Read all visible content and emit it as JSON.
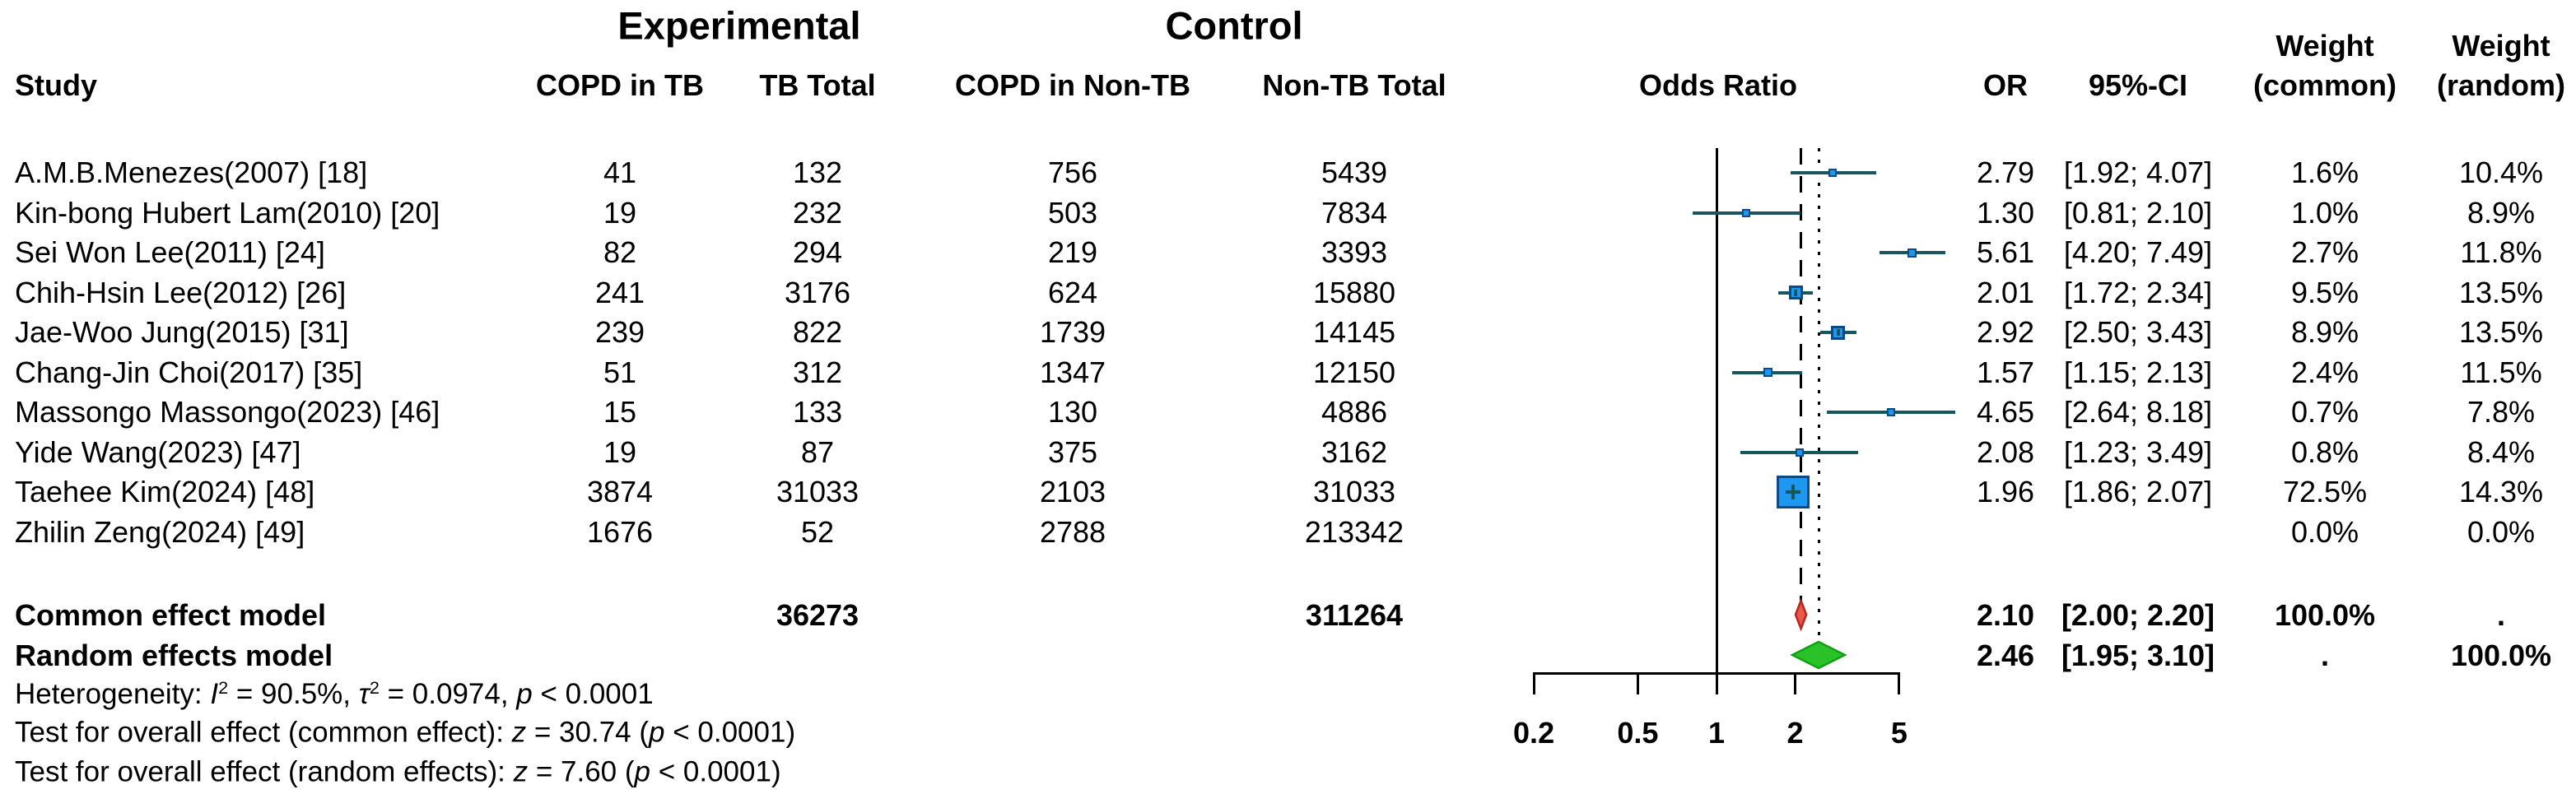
{
  "headers": {
    "group_experimental": "Experimental",
    "group_control": "Control",
    "study": "Study",
    "copd_in_tb": "COPD in TB",
    "tb_total": "TB Total",
    "copd_in_non_tb": "COPD in Non-TB",
    "non_tb_total": "Non-TB Total",
    "odds_ratio": "Odds Ratio",
    "or": "OR",
    "ci": "95%-CI",
    "weight_common_line1": "Weight",
    "weight_common_line2": "(common)",
    "weight_random_line1": "Weight",
    "weight_random_line2": "(random)"
  },
  "colors": {
    "square_fill": "#1E97F0",
    "square_border": "#0B4A85",
    "ci_line": "#17565E",
    "cross": "#17565E",
    "common_diamond_fill": "#E9584A",
    "common_diamond_border": "#B3271E",
    "random_diamond_fill": "#29C229",
    "random_diamond_border": "#12A012",
    "reference_lines": "#000000"
  },
  "chart_data": {
    "type": "forest",
    "title": "",
    "x_axis": {
      "scale": "log",
      "reference_line": 1,
      "ticks": [
        {
          "v": 0.2,
          "label": "0.2"
        },
        {
          "v": 0.5,
          "label": "0.5"
        },
        {
          "v": 1,
          "label": "1"
        },
        {
          "v": 2,
          "label": "2"
        },
        {
          "v": 5,
          "label": "5"
        }
      ]
    },
    "studies": [
      {
        "study": "A.M.B.Menezes(2007) [18]",
        "copd_in_tb": "41",
        "tb_total": "132",
        "copd_in_non_tb": "756",
        "non_tb_total": "5439",
        "or": 2.79,
        "ci_low": 1.92,
        "ci_high": 4.07,
        "or_text": "2.79",
        "ci_text": "[1.92; 4.07]",
        "weight_common": "1.6%",
        "weight_random": "10.4%"
      },
      {
        "study": "Kin-bong Hubert Lam(2010) [20]",
        "copd_in_tb": "19",
        "tb_total": "232",
        "copd_in_non_tb": "503",
        "non_tb_total": "7834",
        "or": 1.3,
        "ci_low": 0.81,
        "ci_high": 2.1,
        "or_text": "1.30",
        "ci_text": "[0.81; 2.10]",
        "weight_common": "1.0%",
        "weight_random": "8.9%"
      },
      {
        "study": "Sei Won Lee(2011) [24]",
        "copd_in_tb": "82",
        "tb_total": "294",
        "copd_in_non_tb": "219",
        "non_tb_total": "3393",
        "or": 5.61,
        "ci_low": 4.2,
        "ci_high": 7.49,
        "or_text": "5.61",
        "ci_text": "[4.20; 7.49]",
        "weight_common": "2.7%",
        "weight_random": "11.8%"
      },
      {
        "study": "Chih-Hsin Lee(2012) [26]",
        "copd_in_tb": "241",
        "tb_total": "3176",
        "copd_in_non_tb": "624",
        "non_tb_total": "15880",
        "or": 2.01,
        "ci_low": 1.72,
        "ci_high": 2.34,
        "or_text": "2.01",
        "ci_text": "[1.72; 2.34]",
        "weight_common": "9.5%",
        "weight_random": "13.5%"
      },
      {
        "study": "Jae-Woo Jung(2015) [31]",
        "copd_in_tb": "239",
        "tb_total": "822",
        "copd_in_non_tb": "1739",
        "non_tb_total": "14145",
        "or": 2.92,
        "ci_low": 2.5,
        "ci_high": 3.43,
        "or_text": "2.92",
        "ci_text": "[2.50; 3.43]",
        "weight_common": "8.9%",
        "weight_random": "13.5%"
      },
      {
        "study": "Chang-Jin Choi(2017) [35]",
        "copd_in_tb": "51",
        "tb_total": "312",
        "copd_in_non_tb": "1347",
        "non_tb_total": "12150",
        "or": 1.57,
        "ci_low": 1.15,
        "ci_high": 2.13,
        "or_text": "1.57",
        "ci_text": "[1.15; 2.13]",
        "weight_common": "2.4%",
        "weight_random": "11.5%"
      },
      {
        "study": "Massongo Massongo(2023) [46]",
        "copd_in_tb": "15",
        "tb_total": "133",
        "copd_in_non_tb": "130",
        "non_tb_total": "4886",
        "or": 4.65,
        "ci_low": 2.64,
        "ci_high": 8.18,
        "or_text": "4.65",
        "ci_text": "[2.64; 8.18]",
        "weight_common": "0.7%",
        "weight_random": "7.8%"
      },
      {
        "study": "Yide Wang(2023) [47]",
        "copd_in_tb": "19",
        "tb_total": "87",
        "copd_in_non_tb": "375",
        "non_tb_total": "3162",
        "or": 2.08,
        "ci_low": 1.23,
        "ci_high": 3.49,
        "or_text": "2.08",
        "ci_text": "[1.23; 3.49]",
        "weight_common": "0.8%",
        "weight_random": "8.4%"
      },
      {
        "study": "Taehee Kim(2024) [48]",
        "copd_in_tb": "3874",
        "tb_total": "31033",
        "copd_in_non_tb": "2103",
        "non_tb_total": "31033",
        "or": 1.96,
        "ci_low": 1.86,
        "ci_high": 2.07,
        "or_text": "1.96",
        "ci_text": "[1.86; 2.07]",
        "weight_common": "72.5%",
        "weight_random": "14.3%"
      },
      {
        "study": "Zhilin Zeng(2024) [49]",
        "copd_in_tb": "1676",
        "tb_total": "52",
        "copd_in_non_tb": "2788",
        "non_tb_total": "213342",
        "or": null,
        "ci_low": null,
        "ci_high": null,
        "or_text": "",
        "ci_text": "",
        "weight_common": "0.0%",
        "weight_random": "0.0%"
      }
    ],
    "summary": [
      {
        "label": "Common effect model",
        "tb_total": "36273",
        "non_tb_total": "311264",
        "or": 2.1,
        "ci_low": 2.0,
        "ci_high": 2.2,
        "or_text": "2.10",
        "ci_text": "[2.00; 2.20]",
        "weight_common": "100.0%",
        "weight_random": ".",
        "marker": "common-diamond"
      },
      {
        "label": "Random effects model",
        "tb_total": "",
        "non_tb_total": "",
        "or": 2.46,
        "ci_low": 1.95,
        "ci_high": 3.1,
        "or_text": "2.46",
        "ci_text": "[1.95; 3.10]",
        "weight_common": ".",
        "weight_random": "100.0%",
        "marker": "random-diamond"
      }
    ]
  },
  "footnotes": [
    {
      "name": "heterogeneity-note",
      "segments": [
        [
          "Heterogeneity: ",
          ""
        ],
        [
          "I",
          "i"
        ],
        [
          "2",
          "sup"
        ],
        [
          " = 90.5%, ",
          ""
        ],
        [
          "τ",
          "i"
        ],
        [
          "2",
          "sup"
        ],
        [
          " = 0.0974, ",
          ""
        ],
        [
          "p",
          "i"
        ],
        [
          " < 0.0001",
          ""
        ]
      ]
    },
    {
      "name": "overall-effect-common-note",
      "segments": [
        [
          "Test for overall effect (common effect): ",
          ""
        ],
        [
          "z",
          "i"
        ],
        [
          " = 30.74 (",
          ""
        ],
        [
          "p",
          "i"
        ],
        [
          " < 0.0001)",
          ""
        ]
      ]
    },
    {
      "name": "overall-effect-random-note",
      "segments": [
        [
          "Test for overall effect (random effects): ",
          ""
        ],
        [
          "z",
          "i"
        ],
        [
          " = 7.60 (",
          ""
        ],
        [
          "p",
          "i"
        ],
        [
          " < 0.0001)",
          ""
        ]
      ]
    }
  ]
}
